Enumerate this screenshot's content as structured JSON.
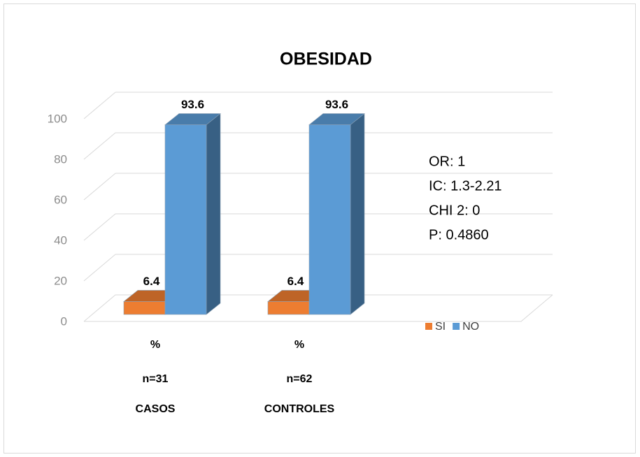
{
  "chart_data": {
    "type": "bar3d",
    "title": "OBESIDAD",
    "categories": [
      [
        "%",
        "n=31",
        "CASOS"
      ],
      [
        "%",
        "n=62",
        "CONTROLES"
      ]
    ],
    "series": [
      {
        "name": "SI",
        "color": "#ED7D31",
        "values": [
          6.4,
          6.4
        ]
      },
      {
        "name": "NO",
        "color": "#5B9BD5",
        "values": [
          93.6,
          93.6
        ]
      }
    ],
    "ylim": [
      0,
      100
    ],
    "yticks": [
      0,
      20,
      40,
      60,
      80,
      100
    ],
    "grid": true,
    "legend": "right",
    "annotations": [
      "OR: 1",
      "IC: 1.3-2.21",
      "CHI 2: 0",
      "P: 0.4860"
    ]
  }
}
